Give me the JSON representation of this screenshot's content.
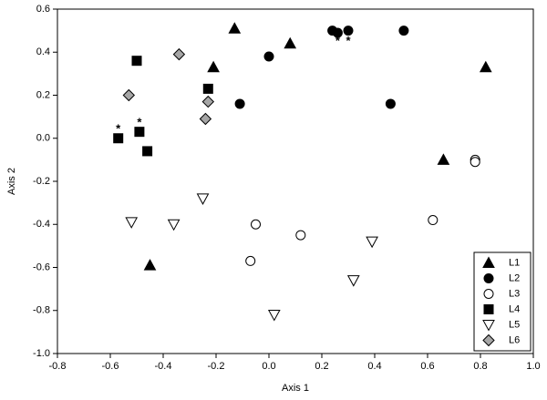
{
  "chart_data": {
    "type": "scatter",
    "x_label": "Axis 1",
    "y_label": "Axis 2",
    "xlim": [
      -0.8,
      1.0
    ],
    "xticks": [
      -0.8,
      -0.6,
      -0.4,
      -0.2,
      {
        "value": 0,
        "label": "0.0"
      },
      0.2,
      0.4,
      0.6,
      0.8,
      {
        "value": 1,
        "label": "1.0"
      }
    ],
    "ylim": [
      -1.0,
      0.6
    ],
    "yticks": [
      {
        "value": -1,
        "label": "-1.0"
      },
      -0.8,
      -0.6,
      -0.4,
      -0.2,
      {
        "value": 0,
        "label": "0.0"
      },
      0.2,
      0.4,
      0.6
    ],
    "grid": false,
    "legend": "lower right",
    "series": [
      {
        "name": "L1",
        "marker": "triangle",
        "color": "#000000",
        "x": [
          -0.13,
          0.08,
          -0.21,
          0.82,
          0.66,
          -0.45
        ],
        "y": [
          0.51,
          0.44,
          0.33,
          0.33,
          -0.1,
          -0.59
        ]
      },
      {
        "name": "L2",
        "marker": "circle",
        "color": "#000000",
        "x": [
          0.24,
          0.26,
          0.3,
          0.51,
          0.0,
          -0.11,
          0.46
        ],
        "y": [
          0.5,
          0.49,
          0.5,
          0.5,
          0.38,
          0.16,
          0.16
        ]
      },
      {
        "name": "L3",
        "marker": "circle",
        "color": "#ffffff",
        "x": [
          0.78,
          0.78,
          0.62,
          0.12,
          -0.05,
          -0.07
        ],
        "y": [
          -0.1,
          -0.11,
          -0.38,
          -0.45,
          -0.4,
          -0.57
        ]
      },
      {
        "name": "L4",
        "marker": "square",
        "color": "#000000",
        "x": [
          -0.5,
          -0.23,
          -0.57,
          -0.49,
          -0.46
        ],
        "y": [
          0.36,
          0.23,
          0.0,
          0.03,
          -0.06
        ]
      },
      {
        "name": "L5",
        "marker": "triangle-down",
        "color": "#ffffff",
        "x": [
          -0.52,
          -0.36,
          -0.25,
          0.39,
          0.32,
          0.02
        ],
        "y": [
          -0.39,
          -0.4,
          -0.28,
          -0.48,
          -0.66,
          -0.82
        ]
      },
      {
        "name": "L6",
        "marker": "diamond",
        "color": "#a6a6a6",
        "x": [
          -0.34,
          -0.53,
          -0.23,
          -0.24
        ],
        "y": [
          0.39,
          0.2,
          0.17,
          0.09
        ]
      }
    ],
    "annotations": [
      {
        "text": "*",
        "x": 0.26,
        "y": 0.45
      },
      {
        "text": "*",
        "x": 0.3,
        "y": 0.45
      },
      {
        "text": "*",
        "x": -0.57,
        "y": 0.04
      },
      {
        "text": "*",
        "x": -0.49,
        "y": 0.07
      }
    ]
  }
}
